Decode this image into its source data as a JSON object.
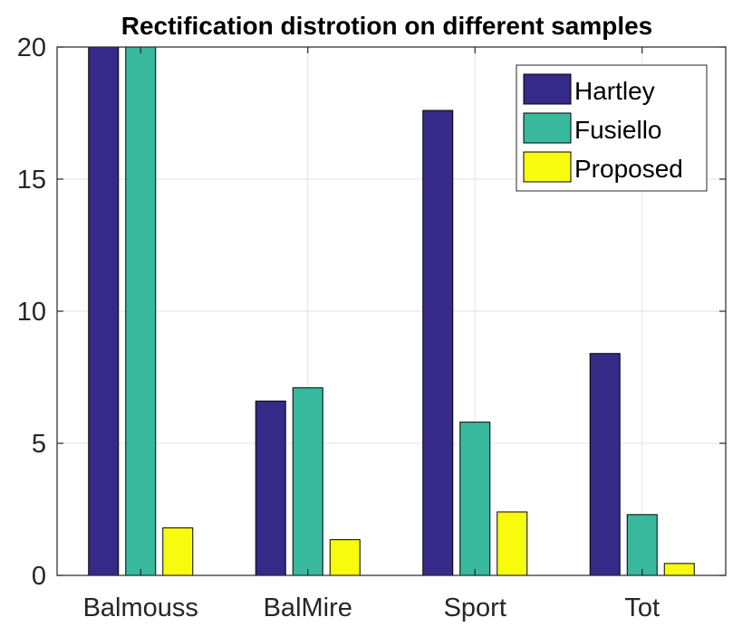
{
  "chart_data": {
    "type": "bar",
    "title": "Rectification distrotion on different samples",
    "xlabel": "",
    "ylabel": "",
    "categories": [
      "Balmouss",
      "BalMire",
      "Sport",
      "Tot"
    ],
    "ylim": [
      0,
      20
    ],
    "yticks": [
      0,
      5,
      10,
      15,
      20
    ],
    "grid": true,
    "legend_position": "top-right",
    "series": [
      {
        "name": "Hartley",
        "color": "#352a87",
        "values": [
          20,
          6.6,
          17.6,
          8.4
        ]
      },
      {
        "name": "Fusiello",
        "color": "#38b99e",
        "values": [
          20,
          7.1,
          5.8,
          2.3
        ]
      },
      {
        "name": "Proposed",
        "color": "#f9fb0e",
        "values": [
          1.8,
          1.35,
          2.4,
          0.45
        ]
      }
    ]
  }
}
